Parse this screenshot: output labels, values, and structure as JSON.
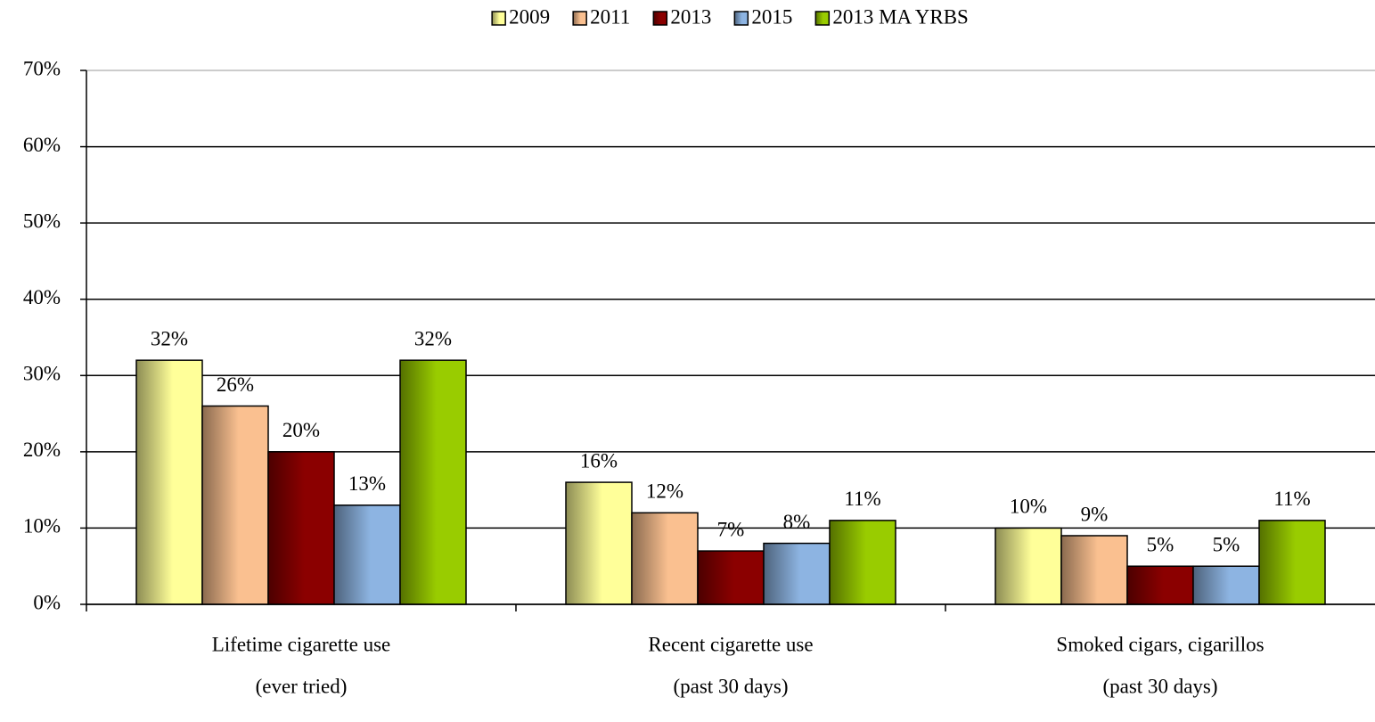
{
  "chart_data": {
    "type": "bar",
    "categories": [
      [
        "Lifetime cigarette use",
        "(ever tried)"
      ],
      [
        "Recent cigarette use",
        "(past 30 days)"
      ],
      [
        "Smoked cigars, cigarillos",
        "(past 30 days)"
      ]
    ],
    "series": [
      {
        "name": "2009",
        "color": "#ffff99",
        "values": [
          32,
          16,
          10
        ],
        "value_labels": [
          "32%",
          "16%",
          "10%"
        ]
      },
      {
        "name": "2011",
        "color": "#fac090",
        "values": [
          26,
          12,
          9
        ],
        "value_labels": [
          "26%",
          "12%",
          "9%"
        ]
      },
      {
        "name": "2013",
        "color": "#8b0000",
        "values": [
          20,
          7,
          5
        ],
        "value_labels": [
          "20%",
          "7%",
          "5%"
        ]
      },
      {
        "name": "2015",
        "color": "#8db4e2",
        "values": [
          13,
          8,
          5
        ],
        "value_labels": [
          "13%",
          "8%",
          "5%"
        ]
      },
      {
        "name": "2013 MA YRBS",
        "color": "#99cc00",
        "values": [
          32,
          11,
          11
        ],
        "value_labels": [
          "32%",
          "11%",
          "11%"
        ]
      }
    ],
    "ylim": [
      0,
      70
    ],
    "yticks": [
      {
        "value": 0,
        "label": "0%"
      },
      {
        "value": 10,
        "label": "10%"
      },
      {
        "value": 20,
        "label": "20%"
      },
      {
        "value": 30,
        "label": "30%"
      },
      {
        "value": 40,
        "label": "40%"
      },
      {
        "value": 50,
        "label": "50%"
      },
      {
        "value": 60,
        "label": "60%"
      },
      {
        "value": 70,
        "label": "70%"
      }
    ],
    "grid": true,
    "legend": "top"
  }
}
